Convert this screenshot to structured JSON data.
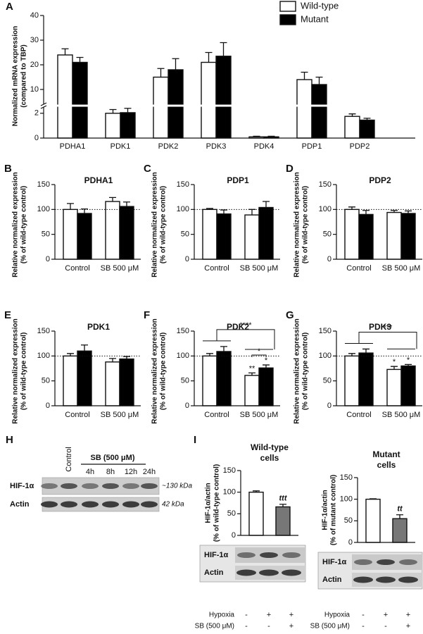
{
  "chart_data": [
    {
      "type": "broken_bar",
      "panel": "A",
      "ylabel": [
        "Normalized mRNA expression",
        "(compared to TBP)"
      ],
      "categories": [
        "PDHA1",
        "PDK1",
        "PDK2",
        "PDK3",
        "PDK4",
        "PDP1",
        "PDP2"
      ],
      "series": [
        {
          "name": "Wild-type",
          "color": "#ffffff",
          "values": [
            24,
            2.0,
            15,
            21,
            0.1,
            14,
            1.75
          ],
          "errors": [
            2.5,
            0.3,
            3.5,
            4,
            0.05,
            3,
            0.2
          ]
        },
        {
          "name": "Mutant",
          "color": "#000000",
          "values": [
            21,
            2.05,
            18,
            23.5,
            0.1,
            12,
            1.45
          ],
          "errors": [
            2,
            0.35,
            4.5,
            5.5,
            0.05,
            3,
            0.15
          ]
        }
      ],
      "ylim": [
        0,
        40
      ],
      "y_segments": [
        [
          0,
          2.5
        ],
        [
          4,
          40
        ]
      ],
      "yticks": [
        0,
        2,
        10,
        20,
        30,
        40
      ],
      "legend": "top-right"
    },
    {
      "type": "bar",
      "panel": "B",
      "title": "PDHA1",
      "categories": [
        "Control",
        "SB 500 μM"
      ],
      "ylabel": [
        "Relative normalized expression",
        "(% of wild-type control)"
      ],
      "series": [
        {
          "color": "#ffffff",
          "values": [
            100,
            116
          ],
          "errors": [
            12,
            8
          ]
        },
        {
          "color": "#000000",
          "values": [
            92,
            106
          ],
          "errors": [
            9,
            9
          ]
        }
      ],
      "ylim": [
        0,
        150
      ],
      "yticks": [
        0,
        50,
        100,
        150
      ],
      "reference_line": 100
    },
    {
      "type": "bar",
      "panel": "C",
      "title": "PDP1",
      "categories": [
        "Control",
        "SB 500 μM"
      ],
      "ylabel": [
        "Relative normalized expression",
        "(% of wild-type control)"
      ],
      "series": [
        {
          "color": "#ffffff",
          "values": [
            100,
            89
          ],
          "errors": [
            2,
            11
          ]
        },
        {
          "color": "#000000",
          "values": [
            91,
            104
          ],
          "errors": [
            8,
            12
          ]
        }
      ],
      "ylim": [
        0,
        150
      ],
      "yticks": [
        0,
        50,
        100,
        150
      ],
      "reference_line": 100
    },
    {
      "type": "bar",
      "panel": "D",
      "title": "PDP2",
      "categories": [
        "Control",
        "SB 500 μM"
      ],
      "ylabel": [
        "Relative normalized expression",
        "(% of wild-type control)"
      ],
      "series": [
        {
          "color": "#ffffff",
          "values": [
            100,
            94
          ],
          "errors": [
            5,
            4
          ]
        },
        {
          "color": "#000000",
          "values": [
            90,
            92
          ],
          "errors": [
            8,
            5
          ]
        }
      ],
      "ylim": [
        0,
        150
      ],
      "yticks": [
        0,
        50,
        100,
        150
      ],
      "reference_line": 100
    },
    {
      "type": "bar",
      "panel": "E",
      "title": "PDK1",
      "categories": [
        "Control",
        "SB 500 μM"
      ],
      "ylabel": [
        "Relative normalized expression",
        "(% of wild-type control)"
      ],
      "series": [
        {
          "color": "#ffffff",
          "values": [
            100,
            88
          ],
          "errors": [
            5,
            7
          ]
        },
        {
          "color": "#000000",
          "values": [
            110,
            94
          ],
          "errors": [
            12,
            5
          ]
        }
      ],
      "ylim": [
        0,
        150
      ],
      "yticks": [
        0,
        50,
        100,
        150
      ],
      "reference_line": 100
    },
    {
      "type": "bar",
      "panel": "F",
      "title": "PDK2",
      "categories": [
        "Control",
        "SB 500 μM"
      ],
      "ylabel": [
        "Relative normalized expression",
        "(% of wild-type control)"
      ],
      "series": [
        {
          "color": "#ffffff",
          "values": [
            100,
            61
          ],
          "errors": [
            5,
            5
          ],
          "annotations": [
            null,
            "**"
          ]
        },
        {
          "color": "#000000",
          "values": [
            109,
            76
          ],
          "errors": [
            10,
            6
          ],
          "annotations": [
            null,
            "*"
          ]
        }
      ],
      "comparisons": [
        "****",
        "*"
      ],
      "ylim": [
        0,
        150
      ],
      "yticks": [
        0,
        50,
        100,
        150
      ],
      "reference_line": 100
    },
    {
      "type": "bar",
      "panel": "G",
      "title": "PDK3",
      "categories": [
        "Control",
        "SB 500 μM"
      ],
      "ylabel": [
        "Relative normalized expression",
        "(% of wild-type control)"
      ],
      "series": [
        {
          "color": "#ffffff",
          "values": [
            100,
            73
          ],
          "errors": [
            5,
            6
          ],
          "annotations": [
            null,
            "*"
          ]
        },
        {
          "color": "#000000",
          "values": [
            106,
            80
          ],
          "errors": [
            8,
            3
          ],
          "annotations": [
            null,
            "*"
          ]
        }
      ],
      "comparisons": [
        "***"
      ],
      "ylim": [
        0,
        150
      ],
      "yticks": [
        0,
        50,
        100,
        150
      ],
      "reference_line": 100
    },
    {
      "type": "blot_bar",
      "panel": "I",
      "title": [
        "Wild-type",
        "cells"
      ],
      "ylabel": [
        "HIF-1α/actin",
        "(% of wild-type control)"
      ],
      "values": [
        100,
        66
      ],
      "errors": [
        3,
        6
      ],
      "colors": [
        "#ffffff",
        "#777777"
      ],
      "value_annotations": [
        null,
        "ttt"
      ],
      "ylim": [
        0,
        150
      ],
      "yticks": [
        0,
        50,
        100,
        150
      ],
      "blot_rows": [
        "HIF-1α",
        "Actin"
      ],
      "conditions": [
        {
          "label": "Hypoxia",
          "values": [
            "-",
            "+",
            "+"
          ]
        },
        {
          "label": "SB (500 μM)",
          "values": [
            "-",
            "-",
            "+"
          ]
        }
      ]
    },
    {
      "type": "blot_bar",
      "title": [
        "Mutant",
        "cells"
      ],
      "ylabel": [
        "HIF-1α/actin",
        "(% of mutant control)"
      ],
      "values": [
        100,
        55
      ],
      "errors": [
        1,
        9
      ],
      "colors": [
        "#ffffff",
        "#777777"
      ],
      "value_annotations": [
        null,
        "tt"
      ],
      "ylim": [
        0,
        150
      ],
      "yticks": [
        0,
        50,
        100,
        150
      ],
      "blot_rows": [
        "HIF-1α",
        "Actin"
      ],
      "conditions": [
        {
          "label": "Hypoxia",
          "values": [
            "-",
            "+",
            "+"
          ]
        },
        {
          "label": "SB (500 μM)",
          "values": [
            "-",
            "-",
            "+"
          ]
        }
      ]
    }
  ],
  "blot_h": {
    "panel": "H",
    "control": "Control",
    "treatment": "SB (500 μM)",
    "times": [
      "4h",
      "8h",
      "12h",
      "24h"
    ],
    "rows": [
      {
        "label": "HIF-1α",
        "size": "~130 kDa"
      },
      {
        "label": "Actin",
        "size": "42 kDa"
      }
    ]
  }
}
